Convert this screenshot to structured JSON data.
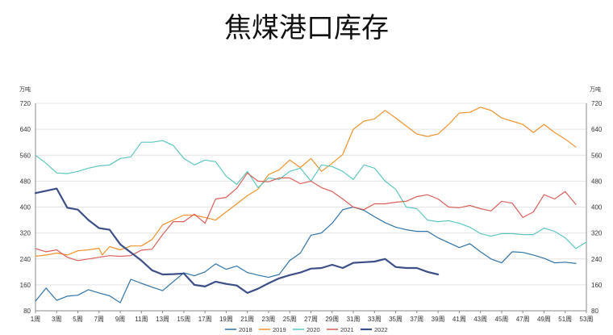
{
  "chart_data": {
    "type": "line",
    "title": "焦煤港口库存",
    "ylabel_left": "万吨",
    "ylabel_right": "万吨",
    "ylim": [
      80,
      720
    ],
    "yticks": [
      80,
      160,
      240,
      320,
      400,
      480,
      560,
      640,
      720
    ],
    "xlim": [
      1,
      53
    ],
    "xticks": [
      "1周",
      "3周",
      "5周",
      "7周",
      "9周",
      "11周",
      "13周",
      "15周",
      "17周",
      "19周",
      "21周",
      "23周",
      "25周",
      "27周",
      "29周",
      "31周",
      "33周",
      "35周",
      "37周",
      "39周",
      "41周",
      "43周",
      "45周",
      "47周",
      "49周",
      "51周",
      "53周"
    ],
    "grid": true,
    "legend_position": "bottom",
    "series": [
      {
        "name": "2018",
        "color": "#2f73a8",
        "width": 1.2,
        "x": [
          1,
          2,
          3,
          4,
          5,
          6,
          7,
          8,
          9,
          10,
          11,
          12,
          13,
          14,
          15,
          16,
          17,
          18,
          19,
          20,
          21,
          22,
          23,
          24,
          25,
          26,
          27,
          28,
          29,
          30,
          31,
          32,
          33,
          34,
          35,
          36,
          37,
          38,
          39,
          40,
          41,
          42,
          43,
          44,
          45,
          46,
          47,
          48,
          49,
          50,
          51,
          52
        ],
        "values": [
          110,
          150,
          112,
          125,
          128,
          145,
          135,
          126,
          105,
          177,
          165,
          153,
          142,
          170,
          197,
          188,
          200,
          225,
          208,
          218,
          198,
          190,
          183,
          192,
          235,
          258,
          313,
          320,
          350,
          392,
          400,
          390,
          370,
          352,
          338,
          330,
          325,
          325,
          305,
          290,
          275,
          287,
          262,
          240,
          228,
          262,
          260,
          252,
          242,
          228,
          230,
          226
        ]
      },
      {
        "name": "2019",
        "color": "#f0922c",
        "width": 1.2,
        "x": [
          1,
          2,
          3,
          4,
          5,
          6,
          7,
          7.3,
          8,
          9,
          10,
          11,
          12,
          13,
          14,
          15,
          16,
          17,
          18,
          19,
          20,
          21,
          22,
          23,
          24,
          25,
          26,
          27,
          28,
          29,
          30,
          31,
          32,
          33,
          34,
          35,
          36,
          37,
          38,
          39,
          40,
          41,
          42,
          43,
          44,
          45,
          46,
          47,
          48,
          49,
          50,
          51,
          52
        ],
        "values": [
          248,
          252,
          258,
          252,
          265,
          268,
          273,
          252,
          278,
          268,
          280,
          280,
          300,
          345,
          360,
          375,
          375,
          368,
          360,
          385,
          410,
          435,
          455,
          500,
          515,
          545,
          522,
          550,
          510,
          535,
          562,
          640,
          665,
          672,
          698,
          675,
          650,
          625,
          618,
          625,
          655,
          690,
          692,
          708,
          698,
          675,
          665,
          655,
          630,
          655,
          630,
          610,
          585
        ]
      },
      {
        "name": "2020",
        "color": "#5ec6c0",
        "width": 1.2,
        "x": [
          1,
          2,
          3,
          4,
          5,
          6,
          7,
          8,
          9,
          10,
          11,
          12,
          13,
          14,
          15,
          16,
          17,
          18,
          19,
          20,
          21,
          22,
          23,
          24,
          25,
          26,
          27,
          28,
          29,
          30,
          31,
          32,
          33,
          34,
          35,
          36,
          37,
          38,
          39,
          40,
          41,
          42,
          43,
          44,
          45,
          46,
          47,
          48,
          49,
          50,
          51,
          52,
          53
        ],
        "values": [
          560,
          535,
          505,
          503,
          510,
          520,
          527,
          530,
          550,
          555,
          600,
          600,
          605,
          590,
          550,
          530,
          545,
          540,
          495,
          470,
          510,
          460,
          490,
          485,
          510,
          520,
          480,
          530,
          525,
          510,
          485,
          530,
          520,
          480,
          455,
          400,
          395,
          360,
          355,
          358,
          350,
          338,
          318,
          310,
          318,
          318,
          315,
          315,
          335,
          325,
          305,
          272,
          292
        ]
      },
      {
        "name": "2021",
        "color": "#d9605a",
        "width": 1.2,
        "x": [
          1,
          2,
          3,
          4,
          5,
          6,
          7,
          8,
          9,
          10,
          11,
          12,
          13,
          14,
          15,
          16,
          17,
          18,
          19,
          20,
          21,
          22,
          23,
          24,
          25,
          26,
          27,
          28,
          29,
          30,
          31,
          32,
          33,
          34,
          35,
          36,
          37,
          38,
          39,
          40,
          41,
          42,
          43,
          44,
          45,
          46,
          47,
          48,
          49,
          50,
          51,
          52
        ],
        "values": [
          272,
          262,
          268,
          245,
          235,
          240,
          245,
          250,
          248,
          250,
          267,
          270,
          315,
          355,
          355,
          378,
          350,
          425,
          430,
          458,
          505,
          480,
          478,
          490,
          490,
          472,
          480,
          460,
          448,
          425,
          400,
          392,
          410,
          410,
          415,
          418,
          432,
          438,
          425,
          400,
          398,
          405,
          395,
          388,
          418,
          412,
          368,
          385,
          438,
          425,
          448,
          408
        ]
      },
      {
        "name": "2022",
        "color": "#3d4f88",
        "width": 2.2,
        "x": [
          1,
          2,
          3,
          4,
          5,
          6,
          7,
          8,
          9,
          10,
          11,
          12,
          13,
          14,
          15,
          16,
          17,
          18,
          19,
          20,
          21,
          22,
          23,
          24,
          25,
          26,
          27,
          28,
          29,
          30,
          31,
          32,
          33,
          34,
          35,
          36,
          37,
          38,
          39
        ],
        "values": [
          443,
          450,
          457,
          398,
          392,
          360,
          335,
          330,
          285,
          260,
          235,
          205,
          192,
          193,
          195,
          160,
          155,
          170,
          163,
          158,
          135,
          148,
          165,
          180,
          190,
          198,
          210,
          212,
          222,
          212,
          228,
          230,
          232,
          240,
          215,
          212,
          212,
          200,
          192
        ]
      }
    ]
  }
}
